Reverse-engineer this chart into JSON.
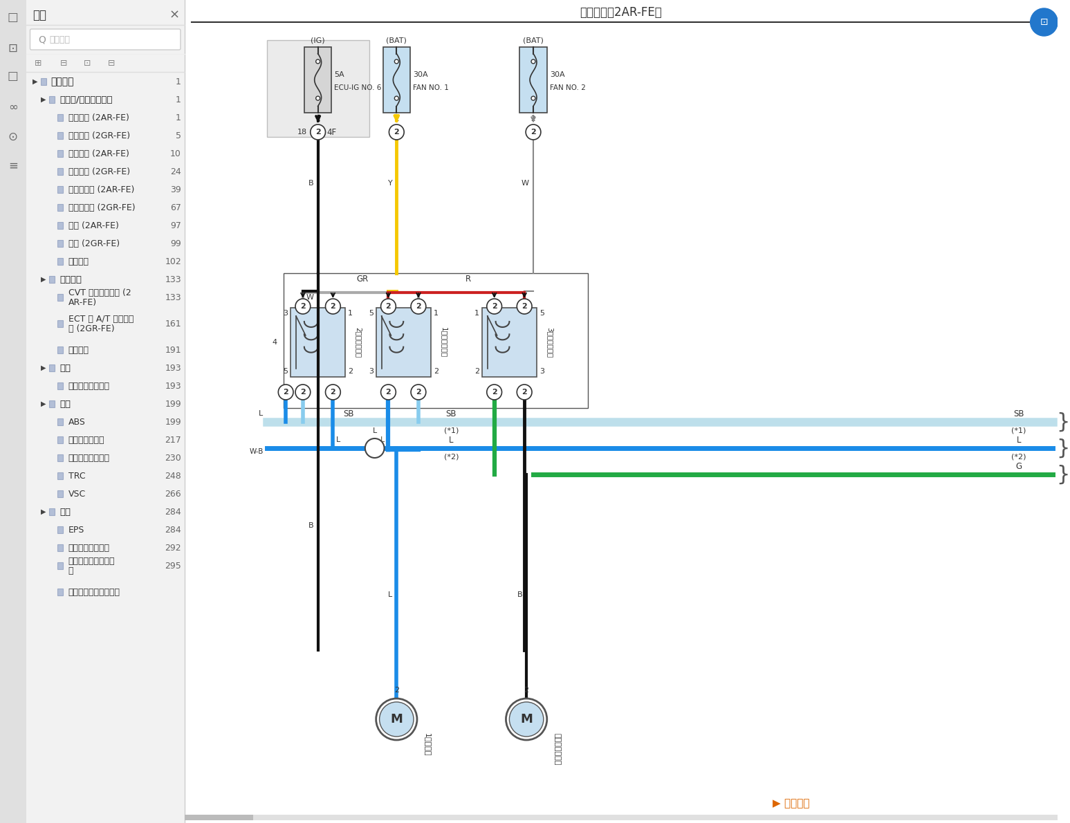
{
  "title": "冷却风扇（2AR-FE）",
  "bg_color": "#ffffff",
  "sidebar_bg": "#f2f2f2",
  "icon_strip_bg": "#e0e0e0",
  "sidebar_title": "书签",
  "sidebar_items": [
    {
      "text": "系统电路",
      "level": 0,
      "page": "1"
    },
    {
      "text": "发动机/混合动力系统",
      "level": 1,
      "page": "1"
    },
    {
      "text": "冷却风扇 (2AR-FE)",
      "level": 2,
      "page": "1"
    },
    {
      "text": "冷却风扇 (2GR-FE)",
      "level": 2,
      "page": "5"
    },
    {
      "text": "巡航控制 (2AR-FE)",
      "level": 2,
      "page": "10"
    },
    {
      "text": "巡航控制 (2GR-FE)",
      "level": 2,
      "page": "24"
    },
    {
      "text": "发动机控制 (2AR-FE)",
      "level": 2,
      "page": "39"
    },
    {
      "text": "发动机控制 (2GR-FE)",
      "level": 2,
      "page": "67"
    },
    {
      "text": "点火 (2AR-FE)",
      "level": 2,
      "page": "97"
    },
    {
      "text": "点火 (2GR-FE)",
      "level": 2,
      "page": "99"
    },
    {
      "text": "启停系统",
      "level": 2,
      "page": "102"
    },
    {
      "text": "传动系统",
      "level": 1,
      "page": "133"
    },
    {
      "text": "CVT 和换档指示灯 (2\nAR-FE)",
      "level": 2,
      "page": "133"
    },
    {
      "text": "ECT 和 A/T 档位指示\n器 (2GR-FE)",
      "level": 2,
      "page": "161"
    },
    {
      "text": "换档锁止",
      "level": 2,
      "page": "191"
    },
    {
      "text": "悬架",
      "level": 1,
      "page": "193"
    },
    {
      "text": "轮胎压力警告系统",
      "level": 2,
      "page": "193"
    },
    {
      "text": "制动",
      "level": 1,
      "page": "199"
    },
    {
      "text": "ABS",
      "level": 2,
      "page": "199"
    },
    {
      "text": "电动驻车制动器",
      "level": 2,
      "page": "217"
    },
    {
      "text": "上坡起步辅助控制",
      "level": 2,
      "page": "230"
    },
    {
      "text": "TRC",
      "level": 2,
      "page": "248"
    },
    {
      "text": "VSC",
      "level": 2,
      "page": "266"
    },
    {
      "text": "转向",
      "level": 1,
      "page": "284"
    },
    {
      "text": "EPS",
      "level": 2,
      "page": "284"
    },
    {
      "text": "加热式方向盘系统",
      "level": 2,
      "page": "292"
    },
    {
      "text": "转向锁（左驾驶车型\n）",
      "level": 2,
      "page": "295"
    },
    {
      "text": "转向锁（右驾驶车型）",
      "level": 2,
      "page": ""
    }
  ],
  "fuse_ig_label": "(IG)",
  "fuse_ig_amp": "5A",
  "fuse_ig_name": "ECU-IG NO. 6",
  "fuse_bat1_label": "(BAT)",
  "fuse_bat1_amp": "30A",
  "fuse_bat1_name": "FAN NO. 1",
  "fuse_bat2_label": "(BAT)",
  "fuse_bat2_amp": "30A",
  "fuse_bat2_name": "FAN NO. 2",
  "relay1_label": "2号风扇继电器",
  "relay2_label": "1号风扇继电器",
  "relay3_label": "3号风扇继电器",
  "motor1_label": "1扇电动机",
  "motor2_label": "冷却风扇电动机",
  "wire_black": "#111111",
  "wire_yellow": "#f5c800",
  "wire_gray": "#aaaaaa",
  "wire_red": "#cc2222",
  "wire_blue": "#1a8ce8",
  "wire_light_blue": "#88ccee",
  "wire_green": "#22aa44",
  "wire_sb": "#add8e6",
  "ecm_box_color": "#d5d5d5",
  "fuse_box_color": "#c5dff0",
  "relay_box_color": "#cce0f0"
}
